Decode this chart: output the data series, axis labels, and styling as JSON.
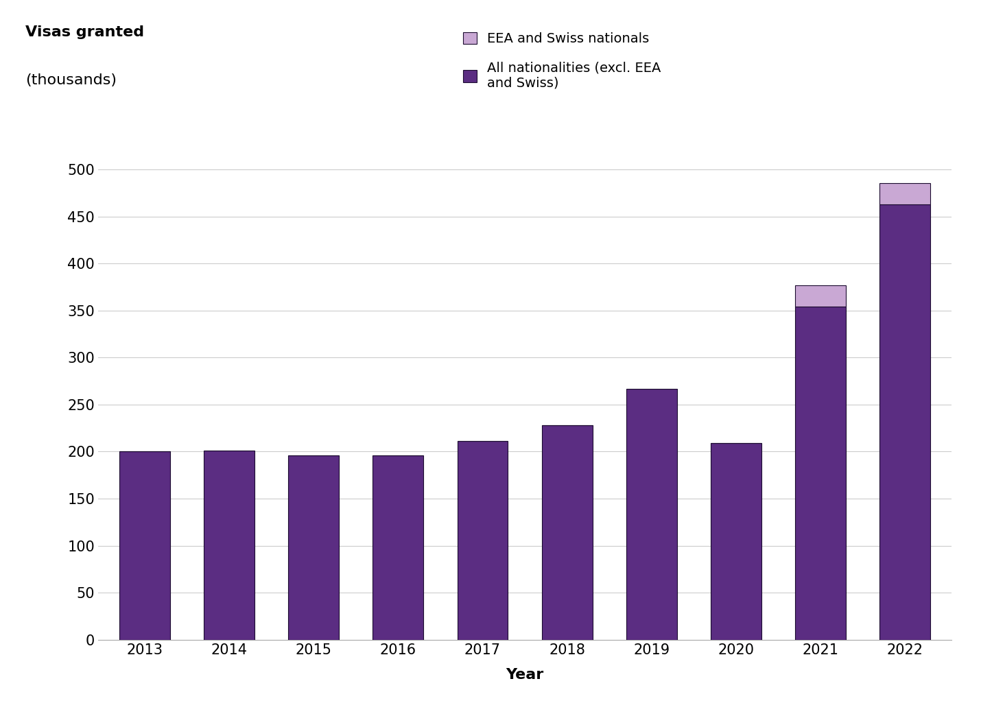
{
  "years": [
    2013,
    2014,
    2015,
    2016,
    2017,
    2018,
    2019,
    2020,
    2021,
    2022
  ],
  "all_nationalities": [
    200,
    201,
    196,
    196,
    211,
    228,
    267,
    209,
    354,
    463
  ],
  "eea_swiss": [
    0,
    0,
    0,
    0,
    0,
    0,
    0,
    0,
    23,
    22
  ],
  "bar_color_main": "#5b2d82",
  "bar_color_eea": "#c9a8d4",
  "bar_edgecolor": "#1a0a2e",
  "background_color": "#ffffff",
  "ylabel_line1": "Visas granted",
  "ylabel_line2": "(thousands)",
  "xlabel": "Year",
  "ylim": [
    0,
    510
  ],
  "yticks": [
    0,
    50,
    100,
    150,
    200,
    250,
    300,
    350,
    400,
    450,
    500
  ],
  "legend_label_eea": "EEA and Swiss nationals",
  "legend_label_all": "All nationalities (excl. EEA\nand Swiss)",
  "grid_color": "#cccccc",
  "axis_fontsize": 16,
  "tick_fontsize": 15,
  "legend_fontsize": 14,
  "ylabel_fontsize": 16
}
